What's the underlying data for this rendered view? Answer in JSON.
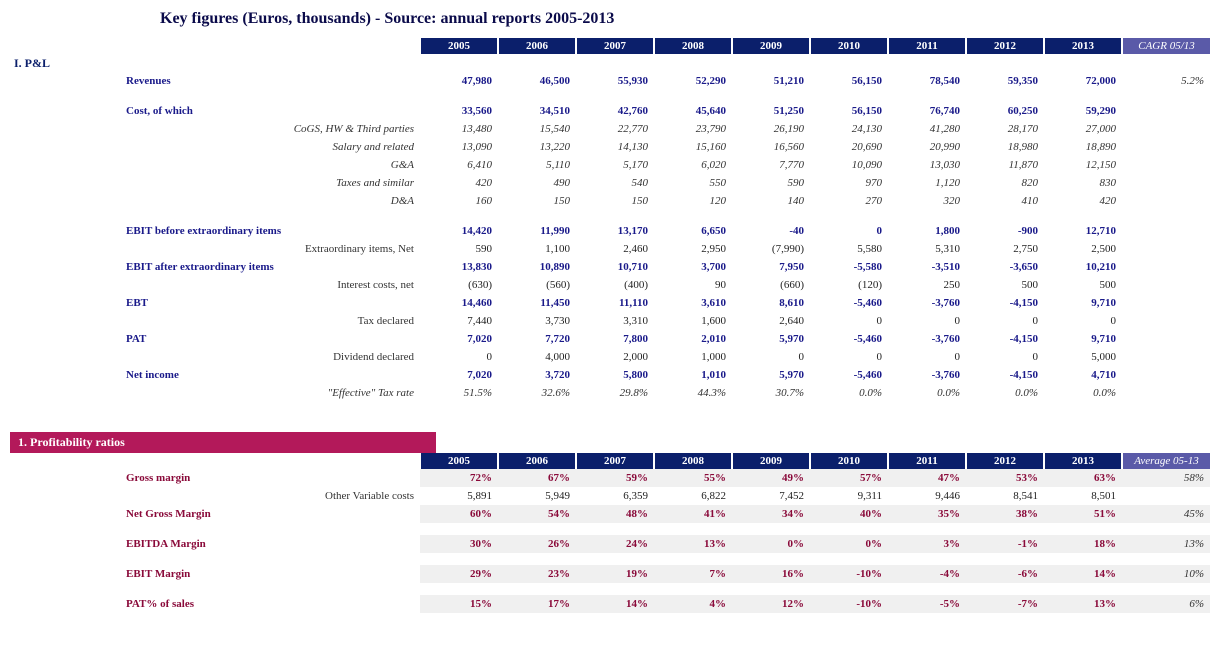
{
  "title": "Key figures (Euros, thousands) - Source: annual reports 2005-2013",
  "years": [
    "2005",
    "2006",
    "2007",
    "2008",
    "2009",
    "2010",
    "2011",
    "2012",
    "2013"
  ],
  "pnl": {
    "section_label": "I. P&L",
    "agg_label": "CAGR 05/13",
    "rows": [
      {
        "type": "bold",
        "label": "Revenues",
        "vals": [
          "47,980",
          "46,500",
          "55,930",
          "52,290",
          "51,210",
          "56,150",
          "78,540",
          "59,350",
          "72,000"
        ],
        "agg": "5.2%"
      },
      {
        "type": "spacer"
      },
      {
        "type": "bold",
        "label": "Cost, of which",
        "vals": [
          "33,560",
          "34,510",
          "42,760",
          "45,640",
          "51,250",
          "56,150",
          "76,740",
          "60,250",
          "59,290"
        ],
        "agg": ""
      },
      {
        "type": "ital",
        "label": "CoGS, HW & Third parties",
        "vals": [
          "13,480",
          "15,540",
          "22,770",
          "23,790",
          "26,190",
          "24,130",
          "41,280",
          "28,170",
          "27,000"
        ],
        "agg": ""
      },
      {
        "type": "ital",
        "label": "Salary and related",
        "vals": [
          "13,090",
          "13,220",
          "14,130",
          "15,160",
          "16,560",
          "20,690",
          "20,990",
          "18,980",
          "18,890"
        ],
        "agg": ""
      },
      {
        "type": "ital",
        "label": "G&A",
        "vals": [
          "6,410",
          "5,110",
          "5,170",
          "6,020",
          "7,770",
          "10,090",
          "13,030",
          "11,870",
          "12,150"
        ],
        "agg": ""
      },
      {
        "type": "ital",
        "label": "Taxes and similar",
        "vals": [
          "420",
          "490",
          "540",
          "550",
          "590",
          "970",
          "1,120",
          "820",
          "830"
        ],
        "agg": ""
      },
      {
        "type": "ital",
        "label": "D&A",
        "vals": [
          "160",
          "150",
          "150",
          "120",
          "140",
          "270",
          "320",
          "410",
          "420"
        ],
        "agg": ""
      },
      {
        "type": "spacer"
      },
      {
        "type": "bold",
        "label": "EBIT before extraordinary items",
        "vals": [
          "14,420",
          "11,990",
          "13,170",
          "6,650",
          "-40",
          "0",
          "1,800",
          "-900",
          "12,710"
        ],
        "agg": ""
      },
      {
        "type": "sub",
        "label": "Extraordinary items, Net",
        "vals": [
          "590",
          "1,100",
          "2,460",
          "2,950",
          "(7,990)",
          "5,580",
          "5,310",
          "2,750",
          "2,500"
        ],
        "agg": ""
      },
      {
        "type": "bold",
        "label": "EBIT after extraordinary items",
        "vals": [
          "13,830",
          "10,890",
          "10,710",
          "3,700",
          "7,950",
          "-5,580",
          "-3,510",
          "-3,650",
          "10,210"
        ],
        "agg": ""
      },
      {
        "type": "sub",
        "label": "Interest costs, net",
        "vals": [
          "(630)",
          "(560)",
          "(400)",
          "90",
          "(660)",
          "(120)",
          "250",
          "500",
          "500"
        ],
        "agg": ""
      },
      {
        "type": "bold",
        "label": "EBT",
        "vals": [
          "14,460",
          "11,450",
          "11,110",
          "3,610",
          "8,610",
          "-5,460",
          "-3,760",
          "-4,150",
          "9,710"
        ],
        "agg": ""
      },
      {
        "type": "sub",
        "label": "Tax declared",
        "vals": [
          "7,440",
          "3,730",
          "3,310",
          "1,600",
          "2,640",
          "0",
          "0",
          "0",
          "0"
        ],
        "agg": ""
      },
      {
        "type": "bold",
        "label": "PAT",
        "vals": [
          "7,020",
          "7,720",
          "7,800",
          "2,010",
          "5,970",
          "-5,460",
          "-3,760",
          "-4,150",
          "9,710"
        ],
        "agg": ""
      },
      {
        "type": "sub",
        "label": "Dividend declared",
        "vals": [
          "0",
          "4,000",
          "2,000",
          "1,000",
          "0",
          "0",
          "0",
          "0",
          "5,000"
        ],
        "agg": ""
      },
      {
        "type": "bold",
        "label": "Net income",
        "vals": [
          "7,020",
          "3,720",
          "5,800",
          "1,010",
          "5,970",
          "-5,460",
          "-3,760",
          "-4,150",
          "4,710"
        ],
        "agg": ""
      },
      {
        "type": "ital",
        "label": "\"Effective\" Tax rate",
        "vals": [
          "51.5%",
          "32.6%",
          "29.8%",
          "44.3%",
          "30.7%",
          "0.0%",
          "0.0%",
          "0.0%",
          "0.0%"
        ],
        "agg": ""
      }
    ]
  },
  "ratios": {
    "banner": "1. Profitability ratios",
    "agg_label": "Average 05-13",
    "rows": [
      {
        "type": "bold",
        "shade": true,
        "label": "Gross margin",
        "vals": [
          "72%",
          "67%",
          "59%",
          "55%",
          "49%",
          "57%",
          "47%",
          "53%",
          "63%"
        ],
        "agg": "58%"
      },
      {
        "type": "sub",
        "shade": false,
        "label": "Other Variable costs",
        "vals": [
          "5,891",
          "5,949",
          "6,359",
          "6,822",
          "7,452",
          "9,311",
          "9,446",
          "8,541",
          "8,501"
        ],
        "agg": ""
      },
      {
        "type": "bold",
        "shade": true,
        "label": "Net Gross Margin",
        "vals": [
          "60%",
          "54%",
          "48%",
          "41%",
          "34%",
          "40%",
          "35%",
          "38%",
          "51%"
        ],
        "agg": "45%"
      },
      {
        "type": "spacer"
      },
      {
        "type": "bold",
        "shade": true,
        "label": "EBITDA Margin",
        "vals": [
          "30%",
          "26%",
          "24%",
          "13%",
          "0%",
          "0%",
          "3%",
          "-1%",
          "18%"
        ],
        "agg": "13%"
      },
      {
        "type": "spacer"
      },
      {
        "type": "bold",
        "shade": true,
        "label": "EBIT Margin",
        "vals": [
          "29%",
          "23%",
          "19%",
          "7%",
          "16%",
          "-10%",
          "-4%",
          "-6%",
          "14%"
        ],
        "agg": "10%"
      },
      {
        "type": "spacer"
      },
      {
        "type": "bold",
        "shade": true,
        "label": "PAT% of sales",
        "vals": [
          "15%",
          "17%",
          "14%",
          "4%",
          "12%",
          "-10%",
          "-5%",
          "-7%",
          "13%"
        ],
        "agg": "6%"
      }
    ]
  },
  "colors": {
    "header_bg": "#0b1f6b",
    "agg_bg": "#5a5aa8",
    "pnl_text": "#1a1a8a",
    "ratio_banner_bg": "#b3195a",
    "ratio_text": "#8a0a3a",
    "shade_bg": "#f0f0f0"
  }
}
